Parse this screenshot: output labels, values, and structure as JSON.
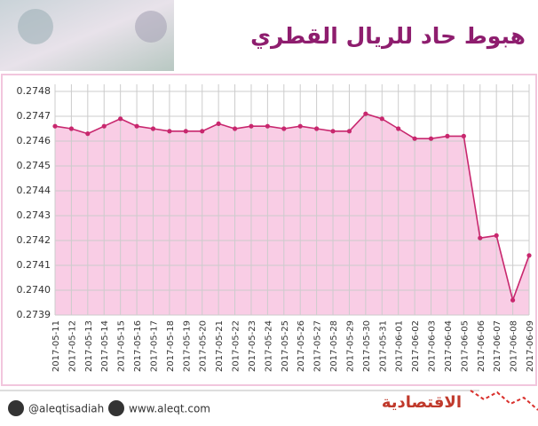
{
  "chart_data": {
    "type": "area",
    "title": "هبوط حاد للريال القطري",
    "x": [
      "2017-05-11",
      "2017-05-12",
      "2017-05-13",
      "2017-05-14",
      "2017-05-15",
      "2017-05-16",
      "2017-05-17",
      "2017-05-18",
      "2017-05-19",
      "2017-05-20",
      "2017-05-21",
      "2017-05-22",
      "2017-05-23",
      "2017-05-24",
      "2017-05-25",
      "2017-05-26",
      "2017-05-27",
      "2017-05-28",
      "2017-05-29",
      "2017-05-30",
      "2017-05-31",
      "2017-06-01",
      "2017-06-02",
      "2017-06-03",
      "2017-06-04",
      "2017-06-05",
      "2017-06-06",
      "2017-06-07",
      "2017-06-08",
      "2017-06-09"
    ],
    "values": [
      0.27466,
      0.27465,
      0.27463,
      0.27466,
      0.27469,
      0.27466,
      0.27465,
      0.27464,
      0.27464,
      0.27464,
      0.27467,
      0.27465,
      0.27466,
      0.27466,
      0.27465,
      0.27466,
      0.27465,
      0.27464,
      0.27464,
      0.27471,
      0.27469,
      0.27465,
      0.27461,
      0.27461,
      0.27462,
      0.27462,
      0.27421,
      0.27422,
      0.27396,
      0.27414
    ],
    "color": "#c8276e",
    "area_color": "#f9cde5",
    "ylim": [
      0.2739,
      0.2748
    ],
    "yticks": [
      0.2739,
      {
        "value": 0.274,
        "label": "0.2740"
      },
      0.2741,
      0.2742,
      0.2743,
      0.2744,
      0.2745,
      0.2746,
      0.2747,
      0.2748
    ],
    "grid": true
  },
  "footer": {
    "twitter": "@aleqtisadiah",
    "website": "www.aleqt.com",
    "logo": "الاقتصادية"
  }
}
